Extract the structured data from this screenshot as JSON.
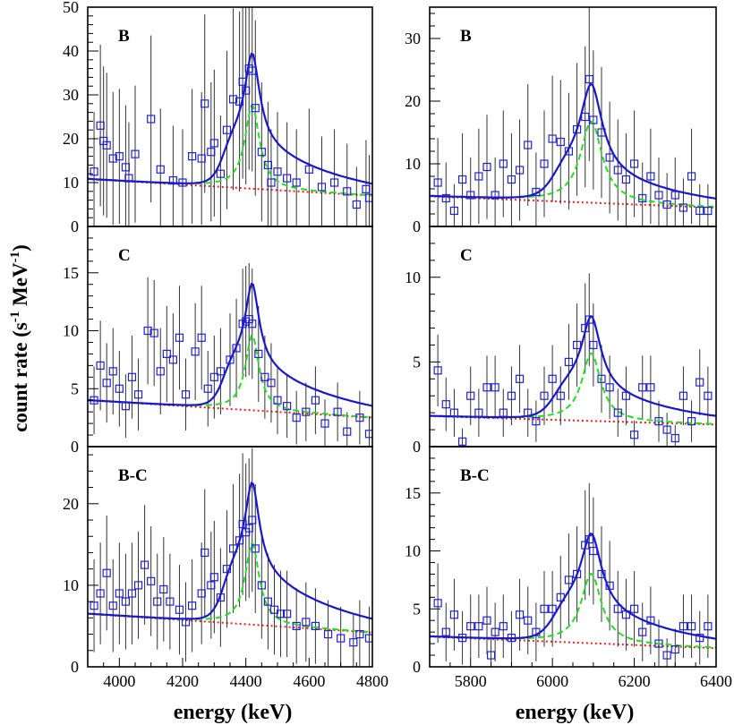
{
  "figure": {
    "xlabel": "energy (keV)",
    "ylabel": "count rate (s",
    "ylabel_sup1": "-1",
    "ylabel_mid": " MeV",
    "ylabel_sup2": "-1",
    "ylabel_end": ")"
  },
  "colors": {
    "data": "#2020e0",
    "total_fit": "#1818c8",
    "peak_fit": "#22dd22",
    "background": "#ee2020",
    "axes": "#000000"
  },
  "chart_data": [
    {
      "type": "scatter",
      "panel_label": "B",
      "column": "left",
      "row": 0,
      "xlim": [
        3900,
        4800
      ],
      "ylim": [
        0,
        50
      ],
      "xticks": [
        4000,
        4200,
        4400,
        4600,
        4800
      ],
      "yticks": [
        0,
        10,
        20,
        30,
        40,
        50
      ],
      "peak": {
        "center": 4420,
        "width": 28,
        "height": 19,
        "shoulder": 12,
        "shoulder_decay": 250
      },
      "background": {
        "start": 10.8,
        "end": 7.0
      },
      "data_points": [
        [
          3920,
          12.5
        ],
        [
          3940,
          23
        ],
        [
          3950,
          19.5
        ],
        [
          3960,
          18.5
        ],
        [
          3980,
          15.5
        ],
        [
          4000,
          16
        ],
        [
          4020,
          13.5
        ],
        [
          4030,
          11
        ],
        [
          4050,
          16.5
        ],
        [
          4100,
          24.5
        ],
        [
          4130,
          13
        ],
        [
          4170,
          10.5
        ],
        [
          4200,
          10
        ],
        [
          4230,
          16
        ],
        [
          4260,
          15.5
        ],
        [
          4270,
          28
        ],
        [
          4290,
          17
        ],
        [
          4300,
          19
        ],
        [
          4320,
          12
        ],
        [
          4340,
          22
        ],
        [
          4360,
          29
        ],
        [
          4380,
          28.5
        ],
        [
          4390,
          33
        ],
        [
          4400,
          31
        ],
        [
          4410,
          36
        ],
        [
          4420,
          35.5
        ],
        [
          4430,
          27
        ],
        [
          4450,
          17
        ],
        [
          4470,
          14
        ],
        [
          4480,
          10
        ],
        [
          4500,
          12.5
        ],
        [
          4530,
          11
        ],
        [
          4560,
          10
        ],
        [
          4600,
          13
        ],
        [
          4640,
          9
        ],
        [
          4680,
          10
        ],
        [
          4720,
          8
        ],
        [
          4750,
          5
        ],
        [
          4780,
          8.5
        ],
        [
          4790,
          6.5
        ]
      ]
    },
    {
      "type": "scatter",
      "panel_label": "B",
      "column": "right",
      "row": 0,
      "xlim": [
        5700,
        6400
      ],
      "ylim": [
        0,
        35
      ],
      "xticks": [
        5800,
        6000,
        6200,
        6400
      ],
      "yticks": [
        0,
        10,
        20,
        30
      ],
      "peak": {
        "center": 6095,
        "width": 32,
        "height": 13,
        "shoulder": 6,
        "shoulder_decay": 200
      },
      "background": {
        "start": 4.8,
        "end": 3.0
      },
      "data_points": [
        [
          5720,
          7
        ],
        [
          5740,
          4.5
        ],
        [
          5760,
          2.5
        ],
        [
          5780,
          7.5
        ],
        [
          5800,
          5
        ],
        [
          5820,
          8
        ],
        [
          5840,
          9.5
        ],
        [
          5860,
          5
        ],
        [
          5880,
          10
        ],
        [
          5900,
          7.5
        ],
        [
          5920,
          9
        ],
        [
          5940,
          13
        ],
        [
          5960,
          5.5
        ],
        [
          5980,
          10
        ],
        [
          6000,
          14
        ],
        [
          6020,
          13.5
        ],
        [
          6040,
          12
        ],
        [
          6060,
          15.5
        ],
        [
          6080,
          17.5
        ],
        [
          6090,
          23.5
        ],
        [
          6100,
          17
        ],
        [
          6120,
          15
        ],
        [
          6140,
          11
        ],
        [
          6160,
          9
        ],
        [
          6180,
          7.5
        ],
        [
          6200,
          10
        ],
        [
          6220,
          4.5
        ],
        [
          6240,
          8
        ],
        [
          6260,
          5
        ],
        [
          6280,
          3.5
        ],
        [
          6300,
          5
        ],
        [
          6320,
          3
        ],
        [
          6340,
          8
        ],
        [
          6360,
          2.5
        ],
        [
          6380,
          2.5
        ]
      ]
    },
    {
      "type": "scatter",
      "panel_label": "C",
      "column": "left",
      "row": 1,
      "xlim": [
        3900,
        4800
      ],
      "ylim": [
        0,
        19
      ],
      "xticks": [
        4000,
        4200,
        4400,
        4600,
        4800
      ],
      "yticks": [
        0,
        5,
        10,
        15
      ],
      "peak": {
        "center": 4420,
        "width": 26,
        "height": 6.5,
        "shoulder": 4.5,
        "shoulder_decay": 250
      },
      "background": {
        "start": 4.0,
        "end": 2.5
      },
      "data_points": [
        [
          3920,
          4
        ],
        [
          3940,
          7
        ],
        [
          3960,
          5.5
        ],
        [
          3980,
          6.5
        ],
        [
          4000,
          5
        ],
        [
          4020,
          3.5
        ],
        [
          4040,
          6
        ],
        [
          4060,
          4.5
        ],
        [
          4090,
          10
        ],
        [
          4110,
          9.8
        ],
        [
          4130,
          6.5
        ],
        [
          4150,
          8
        ],
        [
          4170,
          7.5
        ],
        [
          4190,
          9.4
        ],
        [
          4210,
          4.5
        ],
        [
          4240,
          8.2
        ],
        [
          4260,
          9.4
        ],
        [
          4280,
          5
        ],
        [
          4300,
          6
        ],
        [
          4320,
          6.5
        ],
        [
          4350,
          7.5
        ],
        [
          4370,
          8.5
        ],
        [
          4390,
          10.6
        ],
        [
          4400,
          10.8
        ],
        [
          4410,
          11
        ],
        [
          4420,
          10.6
        ],
        [
          4440,
          8
        ],
        [
          4460,
          6
        ],
        [
          4480,
          5.5
        ],
        [
          4500,
          4
        ],
        [
          4530,
          3.5
        ],
        [
          4560,
          2.5
        ],
        [
          4590,
          3
        ],
        [
          4620,
          4
        ],
        [
          4650,
          2
        ],
        [
          4690,
          3
        ],
        [
          4720,
          1.3
        ],
        [
          4760,
          2.5
        ],
        [
          4790,
          1.1
        ]
      ]
    },
    {
      "type": "scatter",
      "panel_label": "C",
      "column": "right",
      "row": 1,
      "xlim": [
        5700,
        6400
      ],
      "ylim": [
        0,
        13
      ],
      "xticks": [
        5800,
        6000,
        6200,
        6400
      ],
      "yticks": [
        0,
        5,
        10
      ],
      "peak": {
        "center": 6095,
        "width": 28,
        "height": 4,
        "shoulder": 2.2,
        "shoulder_decay": 200
      },
      "background": {
        "start": 1.8,
        "end": 1.3
      },
      "data_points": [
        [
          5720,
          4.5
        ],
        [
          5740,
          2.5
        ],
        [
          5760,
          2
        ],
        [
          5780,
          0.3
        ],
        [
          5800,
          3
        ],
        [
          5820,
          2
        ],
        [
          5840,
          3.5
        ],
        [
          5860,
          3.5
        ],
        [
          5880,
          2
        ],
        [
          5900,
          3
        ],
        [
          5920,
          4
        ],
        [
          5940,
          2
        ],
        [
          5960,
          1.5
        ],
        [
          5980,
          3
        ],
        [
          6000,
          4
        ],
        [
          6020,
          3
        ],
        [
          6040,
          5
        ],
        [
          6060,
          6
        ],
        [
          6080,
          7
        ],
        [
          6090,
          7.5
        ],
        [
          6100,
          6
        ],
        [
          6120,
          4
        ],
        [
          6140,
          3.5
        ],
        [
          6160,
          2
        ],
        [
          6180,
          3
        ],
        [
          6200,
          0.7
        ],
        [
          6220,
          3.5
        ],
        [
          6240,
          3.5
        ],
        [
          6260,
          1.5
        ],
        [
          6280,
          1
        ],
        [
          6300,
          0.5
        ],
        [
          6320,
          3
        ],
        [
          6340,
          1.5
        ],
        [
          6360,
          3.8
        ],
        [
          6380,
          3
        ]
      ]
    },
    {
      "type": "scatter",
      "panel_label": "B-C",
      "column": "left",
      "row": 2,
      "xlim": [
        3900,
        4800
      ],
      "ylim": [
        0,
        27
      ],
      "xticks": [
        4000,
        4200,
        4400,
        4600,
        4800
      ],
      "yticks": [
        0,
        10,
        20
      ],
      "peak": {
        "center": 4420,
        "width": 27,
        "height": 10,
        "shoulder": 7.5,
        "shoulder_decay": 250
      },
      "background": {
        "start": 6.5,
        "end": 4.2
      },
      "data_points": [
        [
          3920,
          7.5
        ],
        [
          3940,
          9
        ],
        [
          3960,
          11.5
        ],
        [
          3980,
          7.5
        ],
        [
          4000,
          9
        ],
        [
          4020,
          8
        ],
        [
          4040,
          9
        ],
        [
          4060,
          10
        ],
        [
          4080,
          12.5
        ],
        [
          4100,
          10.5
        ],
        [
          4120,
          8
        ],
        [
          4140,
          9.5
        ],
        [
          4160,
          8
        ],
        [
          4190,
          7
        ],
        [
          4210,
          5.5
        ],
        [
          4230,
          7.5
        ],
        [
          4260,
          9
        ],
        [
          4270,
          14
        ],
        [
          4290,
          10
        ],
        [
          4300,
          11
        ],
        [
          4320,
          8.5
        ],
        [
          4340,
          12
        ],
        [
          4360,
          14.5
        ],
        [
          4380,
          15.5
        ],
        [
          4390,
          17.5
        ],
        [
          4400,
          16.5
        ],
        [
          4410,
          17
        ],
        [
          4420,
          18
        ],
        [
          4430,
          14.5
        ],
        [
          4450,
          10
        ],
        [
          4470,
          8
        ],
        [
          4490,
          7
        ],
        [
          4510,
          6.5
        ],
        [
          4530,
          6.5
        ],
        [
          4560,
          5
        ],
        [
          4590,
          5.5
        ],
        [
          4620,
          5
        ],
        [
          4660,
          4
        ],
        [
          4700,
          3.5
        ],
        [
          4740,
          3
        ],
        [
          4760,
          4
        ],
        [
          4790,
          3.5
        ]
      ]
    },
    {
      "type": "scatter",
      "panel_label": "B-C",
      "column": "right",
      "row": 2,
      "xlim": [
        5700,
        6400
      ],
      "ylim": [
        0,
        19
      ],
      "xticks": [
        5800,
        6000,
        6200,
        6400
      ],
      "yticks": [
        0,
        5,
        10,
        15
      ],
      "peak": {
        "center": 6095,
        "width": 30,
        "height": 6,
        "shoulder": 3.5,
        "shoulder_decay": 200
      },
      "background": {
        "start": 2.6,
        "end": 1.6
      },
      "data_points": [
        [
          5720,
          5.5
        ],
        [
          5740,
          3
        ],
        [
          5760,
          4.5
        ],
        [
          5780,
          2.5
        ],
        [
          5800,
          3.5
        ],
        [
          5820,
          3.5
        ],
        [
          5840,
          4
        ],
        [
          5850,
          1
        ],
        [
          5860,
          3
        ],
        [
          5880,
          3.5
        ],
        [
          5900,
          2.5
        ],
        [
          5920,
          4.5
        ],
        [
          5940,
          4
        ],
        [
          5960,
          3
        ],
        [
          5980,
          5
        ],
        [
          6000,
          5
        ],
        [
          6020,
          6
        ],
        [
          6040,
          7.5
        ],
        [
          6060,
          8
        ],
        [
          6080,
          10.5
        ],
        [
          6090,
          11
        ],
        [
          6100,
          10
        ],
        [
          6120,
          8
        ],
        [
          6140,
          7
        ],
        [
          6160,
          5
        ],
        [
          6180,
          4.5
        ],
        [
          6200,
          5
        ],
        [
          6220,
          3
        ],
        [
          6240,
          4
        ],
        [
          6260,
          2
        ],
        [
          6280,
          1
        ],
        [
          6300,
          1.5
        ],
        [
          6320,
          3.5
        ],
        [
          6340,
          3.5
        ],
        [
          6360,
          2.5
        ],
        [
          6380,
          3.5
        ]
      ]
    }
  ]
}
